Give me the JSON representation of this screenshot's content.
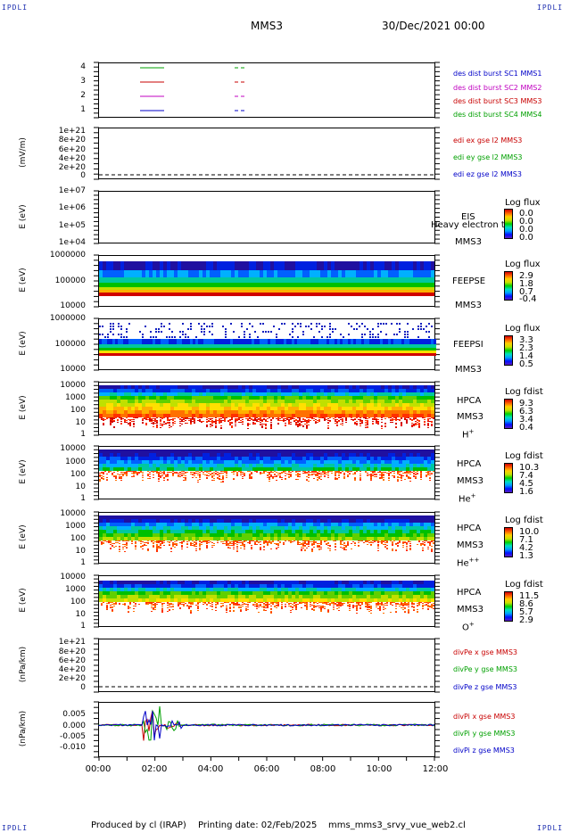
{
  "header": {
    "corner_tl": "IPDLI",
    "corner_tr": "IPDLI",
    "corner_bl": "IPDLI",
    "corner_br": "IPDLI",
    "spacecraft": "MMS3",
    "date": "30/Dec/2021 00:00"
  },
  "footer": {
    "produced": "Produced by cl (IRAP)",
    "printing": "Printing date: 02/Feb/2025",
    "file": "mms_mms3_srvy_vue_web2.cl"
  },
  "colors": {
    "sc1": "#0000c8",
    "sc2": "#c000c0",
    "sc3": "#c80000",
    "sc4": "#00a000"
  },
  "chart_data": [
    {
      "type": "line",
      "panel": "burst",
      "ylabel": "",
      "yticks": [
        "4",
        "3",
        "2",
        "1"
      ],
      "ylim": [
        1,
        4
      ],
      "legend": [
        {
          "text": "des dist burst SC1 MMS1",
          "color": "#0000c8"
        },
        {
          "text": "des dist burst SC2 MMS2",
          "color": "#c000c0"
        },
        {
          "text": "des dist burst SC3 MMS3",
          "color": "#c80000"
        },
        {
          "text": "des dist burst SC4 MMS4",
          "color": "#00a000"
        }
      ]
    },
    {
      "type": "line",
      "panel": "edi",
      "ylabel": "(mV/m)",
      "yticks": [
        "1e+21",
        "8e+20",
        "6e+20",
        "4e+20",
        "2e+20",
        "0"
      ],
      "legend": [
        {
          "text": "edi ex gse l2 MMS3",
          "color": "#c80000"
        },
        {
          "text": "edi ey gse l2 MMS3",
          "color": "#00a000"
        },
        {
          "text": "edi ez gse l2 MMS3",
          "color": "#0000c8"
        }
      ]
    },
    {
      "type": "heatmap",
      "panel": "eis",
      "ylabel": "E (eV)",
      "yticks": [
        "1e+07",
        "1e+06",
        "1e+05",
        "1e+04"
      ],
      "instrument": "EIS",
      "overlay": "Heavy electron to",
      "spacecraft": "MMS3",
      "species": "",
      "cbar_title": "Log flux",
      "cbar_values": [
        "0.0",
        "0.0",
        "0.0",
        "0.0"
      ]
    },
    {
      "type": "heatmap",
      "panel": "feepse",
      "ylabel": "E (eV)",
      "yticks": [
        "1000000",
        "100000",
        "10000"
      ],
      "instrument": "FEEPSE",
      "spacecraft": "MMS3",
      "cbar_title": "Log flux",
      "cbar_values": [
        "2.9",
        "1.8",
        "0.7",
        "-0.4"
      ]
    },
    {
      "type": "heatmap",
      "panel": "feepsi",
      "ylabel": "E (eV)",
      "yticks": [
        "1000000",
        "100000",
        "10000"
      ],
      "instrument": "FEEPSI",
      "spacecraft": "MMS3",
      "cbar_title": "Log flux",
      "cbar_values": [
        "3.3",
        "2.3",
        "1.4",
        "0.5"
      ]
    },
    {
      "type": "heatmap",
      "panel": "hpca-h",
      "ylabel": "E (eV)",
      "yticks": [
        "10000",
        "1000",
        "100",
        "10",
        "1"
      ],
      "instrument": "HPCA",
      "spacecraft": "MMS3",
      "species": "H",
      "species_sup": "+",
      "cbar_title": "Log fdist",
      "cbar_values": [
        "9.3",
        "6.3",
        "3.4",
        "0.4"
      ]
    },
    {
      "type": "heatmap",
      "panel": "hpca-he",
      "ylabel": "E (eV)",
      "yticks": [
        "10000",
        "1000",
        "100",
        "10",
        "1"
      ],
      "instrument": "HPCA",
      "spacecraft": "MMS3",
      "species": "He",
      "species_sup": "+",
      "cbar_title": "Log fdist",
      "cbar_values": [
        "10.3",
        "7.4",
        "4.5",
        "1.6"
      ]
    },
    {
      "type": "heatmap",
      "panel": "hpca-hepp",
      "ylabel": "E (eV)",
      "yticks": [
        "10000",
        "1000",
        "100",
        "10",
        "1"
      ],
      "instrument": "HPCA",
      "spacecraft": "MMS3",
      "species": "He",
      "species_sup": "++",
      "cbar_title": "Log fdist",
      "cbar_values": [
        "10.0",
        "7.1",
        "4.2",
        "1.3"
      ]
    },
    {
      "type": "heatmap",
      "panel": "hpca-o",
      "ylabel": "E (eV)",
      "yticks": [
        "10000",
        "1000",
        "100",
        "10",
        "1"
      ],
      "instrument": "HPCA",
      "spacecraft": "MMS3",
      "species": "O",
      "species_sup": "+",
      "cbar_title": "Log fdist",
      "cbar_values": [
        "11.5",
        "8.6",
        "5.7",
        "2.9"
      ]
    },
    {
      "type": "line",
      "panel": "divpe",
      "ylabel": "(nPa/km)",
      "yticks": [
        "1e+21",
        "8e+20",
        "6e+20",
        "4e+20",
        "2e+20",
        "0"
      ],
      "legend": [
        {
          "text": "divPe x gse MMS3",
          "color": "#c80000"
        },
        {
          "text": "divPe y gse MMS3",
          "color": "#00a000"
        },
        {
          "text": "divPe z gse MMS3",
          "color": "#0000c8"
        }
      ]
    },
    {
      "type": "line",
      "panel": "divpi",
      "ylabel": "(nPa/km)",
      "yticks": [
        "0.005",
        "0.000",
        "-0.005",
        "-0.010"
      ],
      "ylim": [
        -0.013,
        0.008
      ],
      "legend": [
        {
          "text": "divPi x gse MMS3",
          "color": "#c80000"
        },
        {
          "text": "divPi y gse MMS3",
          "color": "#00a000"
        },
        {
          "text": "divPi z gse MMS3",
          "color": "#0000c8"
        }
      ]
    }
  ],
  "xaxis": {
    "ticks": [
      "00:00",
      "02:00",
      "04:00",
      "06:00",
      "08:00",
      "10:00",
      "12:00"
    ],
    "xlim_hours": [
      0,
      12
    ]
  }
}
